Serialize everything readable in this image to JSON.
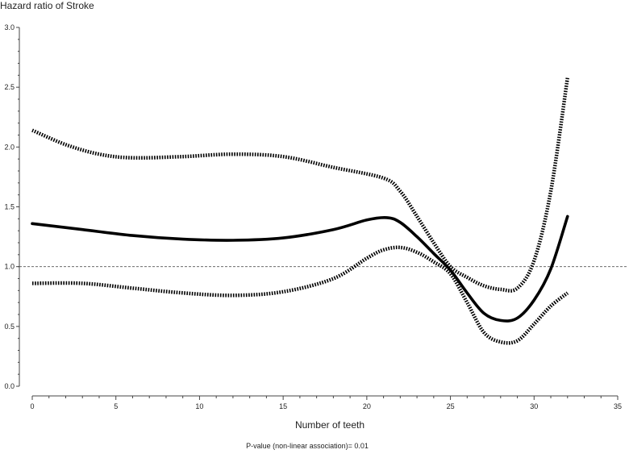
{
  "chart_data": {
    "type": "line",
    "ylabel": "Hazard ratio of Stroke",
    "xlabel": "Number of teeth",
    "note": "P-value (non-linear association)= 0.01",
    "xlim": [
      0,
      35
    ],
    "ylim": [
      0,
      3
    ],
    "x_ticks": [
      0,
      5,
      10,
      15,
      20,
      25,
      30,
      35
    ],
    "x_tick_labels": [
      "0",
      "5",
      "10",
      "15",
      "20",
      "25",
      "30",
      "35"
    ],
    "y_ticks": [
      0,
      0.5,
      1,
      1.5,
      2,
      2.5,
      3
    ],
    "y_tick_labels": [
      "0.0",
      "0.5",
      "1.0",
      "1.5",
      "2.0",
      "2.5",
      "3.0"
    ],
    "reference_line": 1.0,
    "grid": false,
    "series": [
      {
        "role": "estimate",
        "style": "solid",
        "points": [
          [
            0,
            1.36
          ],
          [
            3,
            1.31
          ],
          [
            6,
            1.26
          ],
          [
            9,
            1.23
          ],
          [
            12,
            1.22
          ],
          [
            15,
            1.24
          ],
          [
            18,
            1.31
          ],
          [
            20,
            1.39
          ],
          [
            21.2,
            1.41
          ],
          [
            22,
            1.37
          ],
          [
            23,
            1.25
          ],
          [
            24,
            1.11
          ],
          [
            25,
            0.97
          ],
          [
            26,
            0.78
          ],
          [
            27,
            0.61
          ],
          [
            28,
            0.55
          ],
          [
            29,
            0.57
          ],
          [
            30,
            0.72
          ],
          [
            31,
            0.98
          ],
          [
            32,
            1.42
          ]
        ]
      },
      {
        "role": "upper-95ci",
        "style": "dotted",
        "points": [
          [
            0,
            2.14
          ],
          [
            2,
            2.02
          ],
          [
            4,
            1.94
          ],
          [
            6,
            1.91
          ],
          [
            9,
            1.92
          ],
          [
            12,
            1.94
          ],
          [
            15,
            1.92
          ],
          [
            18,
            1.83
          ],
          [
            21,
            1.74
          ],
          [
            22,
            1.63
          ],
          [
            23,
            1.42
          ],
          [
            24,
            1.2
          ],
          [
            25,
            1.0
          ],
          [
            26,
            0.91
          ],
          [
            27,
            0.84
          ],
          [
            28,
            0.81
          ],
          [
            29,
            0.82
          ],
          [
            30,
            1.05
          ],
          [
            31,
            1.63
          ],
          [
            32,
            2.58
          ]
        ]
      },
      {
        "role": "lower-95ci",
        "style": "dotted",
        "points": [
          [
            0,
            0.86
          ],
          [
            3,
            0.86
          ],
          [
            6,
            0.82
          ],
          [
            9,
            0.78
          ],
          [
            12,
            0.76
          ],
          [
            15,
            0.79
          ],
          [
            18,
            0.9
          ],
          [
            20,
            1.07
          ],
          [
            21,
            1.14
          ],
          [
            22,
            1.16
          ],
          [
            23,
            1.12
          ],
          [
            24,
            1.04
          ],
          [
            25,
            0.94
          ],
          [
            26,
            0.7
          ],
          [
            27,
            0.45
          ],
          [
            28,
            0.37
          ],
          [
            29,
            0.38
          ],
          [
            30,
            0.52
          ],
          [
            31,
            0.67
          ],
          [
            32,
            0.78
          ]
        ]
      }
    ]
  }
}
